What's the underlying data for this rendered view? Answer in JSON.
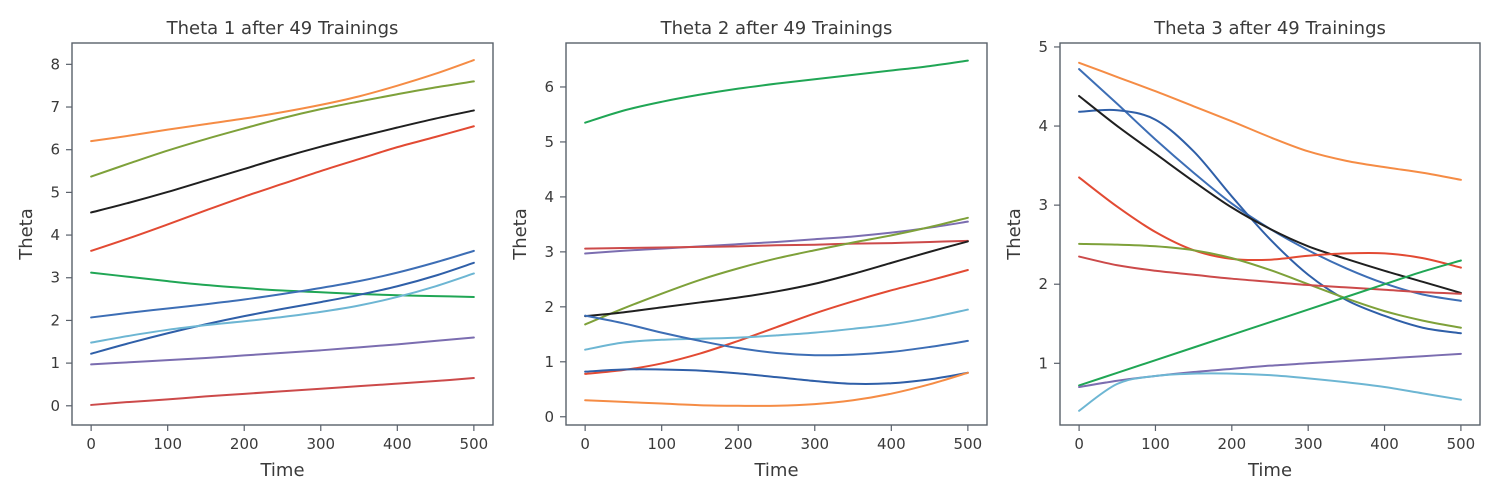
{
  "chart_data": [
    {
      "type": "line",
      "title": "Theta 1 after 49 Trainings",
      "xlabel": "Time",
      "ylabel": "Theta",
      "xlim": [
        -25,
        525
      ],
      "ylim": [
        -0.45,
        8.5
      ],
      "xticks": [
        0,
        100,
        200,
        300,
        400,
        500
      ],
      "yticks": [
        0,
        1,
        2,
        3,
        4,
        5,
        6,
        7,
        8
      ],
      "x": [
        0,
        50,
        100,
        150,
        200,
        250,
        300,
        350,
        400,
        450,
        500
      ],
      "series": [
        {
          "name": "orange",
          "color": "#f58c45",
          "values": [
            6.2,
            6.33,
            6.47,
            6.6,
            6.73,
            6.88,
            7.05,
            7.25,
            7.5,
            7.78,
            8.1
          ]
        },
        {
          "name": "olive",
          "color": "#7ea13a",
          "values": [
            5.37,
            5.68,
            5.98,
            6.25,
            6.5,
            6.74,
            6.95,
            7.13,
            7.3,
            7.46,
            7.6
          ]
        },
        {
          "name": "black",
          "color": "#1f1f1f",
          "values": [
            4.53,
            4.76,
            5.01,
            5.28,
            5.55,
            5.82,
            6.07,
            6.3,
            6.52,
            6.73,
            6.92
          ]
        },
        {
          "name": "red",
          "color": "#e24a33",
          "values": [
            3.63,
            3.93,
            4.25,
            4.58,
            4.9,
            5.2,
            5.5,
            5.78,
            6.06,
            6.3,
            6.55
          ]
        },
        {
          "name": "green",
          "color": "#20a655",
          "values": [
            3.12,
            3.02,
            2.92,
            2.83,
            2.76,
            2.7,
            2.66,
            2.62,
            2.59,
            2.57,
            2.55
          ]
        },
        {
          "name": "blue",
          "color": "#3d6eb5",
          "values": [
            2.07,
            2.18,
            2.28,
            2.38,
            2.49,
            2.62,
            2.76,
            2.92,
            3.12,
            3.36,
            3.63
          ]
        },
        {
          "name": "navy-blue",
          "color": "#2f5fa8",
          "values": [
            1.22,
            1.47,
            1.7,
            1.91,
            2.1,
            2.27,
            2.43,
            2.6,
            2.8,
            3.05,
            3.35
          ]
        },
        {
          "name": "light-blue",
          "color": "#6db6d3",
          "values": [
            1.48,
            1.64,
            1.78,
            1.89,
            1.98,
            2.08,
            2.2,
            2.35,
            2.55,
            2.8,
            3.1
          ]
        },
        {
          "name": "purple",
          "color": "#7b6db0",
          "values": [
            0.97,
            1.02,
            1.07,
            1.12,
            1.18,
            1.24,
            1.3,
            1.37,
            1.44,
            1.52,
            1.6
          ]
        },
        {
          "name": "dark-red",
          "color": "#cc4a4a",
          "values": [
            0.02,
            0.09,
            0.15,
            0.22,
            0.28,
            0.34,
            0.4,
            0.46,
            0.52,
            0.58,
            0.65
          ]
        }
      ]
    },
    {
      "type": "line",
      "title": "Theta 2 after 49 Trainings",
      "xlabel": "Time",
      "ylabel": "Theta",
      "xlim": [
        -25,
        525
      ],
      "ylim": [
        -0.15,
        6.8
      ],
      "xticks": [
        0,
        100,
        200,
        300,
        400,
        500
      ],
      "yticks": [
        0,
        1,
        2,
        3,
        4,
        5,
        6
      ],
      "x": [
        0,
        50,
        100,
        150,
        200,
        250,
        300,
        350,
        400,
        450,
        500
      ],
      "series": [
        {
          "name": "green",
          "color": "#20a655",
          "values": [
            5.35,
            5.57,
            5.73,
            5.86,
            5.97,
            6.06,
            6.14,
            6.22,
            6.3,
            6.38,
            6.48
          ]
        },
        {
          "name": "purple",
          "color": "#7b6db0",
          "values": [
            2.97,
            3.02,
            3.06,
            3.1,
            3.14,
            3.18,
            3.23,
            3.28,
            3.35,
            3.44,
            3.55
          ]
        },
        {
          "name": "red-flat",
          "color": "#cc4a4a",
          "values": [
            3.06,
            3.07,
            3.08,
            3.09,
            3.1,
            3.12,
            3.13,
            3.15,
            3.16,
            3.18,
            3.2
          ]
        },
        {
          "name": "olive",
          "color": "#7ea13a",
          "values": [
            1.68,
            1.97,
            2.24,
            2.49,
            2.7,
            2.88,
            3.03,
            3.17,
            3.3,
            3.45,
            3.62
          ]
        },
        {
          "name": "black",
          "color": "#1f1f1f",
          "values": [
            1.83,
            1.9,
            1.99,
            2.08,
            2.17,
            2.28,
            2.42,
            2.6,
            2.8,
            3.0,
            3.19
          ]
        },
        {
          "name": "red",
          "color": "#e24a33",
          "values": [
            0.78,
            0.85,
            0.97,
            1.15,
            1.38,
            1.63,
            1.88,
            2.1,
            2.3,
            2.48,
            2.67
          ]
        },
        {
          "name": "light-blue",
          "color": "#6db6d3",
          "values": [
            1.22,
            1.35,
            1.4,
            1.42,
            1.44,
            1.48,
            1.53,
            1.6,
            1.68,
            1.8,
            1.95
          ]
        },
        {
          "name": "blue",
          "color": "#3d6eb5",
          "values": [
            1.84,
            1.7,
            1.53,
            1.38,
            1.25,
            1.16,
            1.12,
            1.13,
            1.18,
            1.27,
            1.38
          ]
        },
        {
          "name": "navy-blue",
          "color": "#2f5fa8",
          "values": [
            0.82,
            0.86,
            0.86,
            0.84,
            0.79,
            0.72,
            0.65,
            0.6,
            0.61,
            0.68,
            0.8
          ]
        },
        {
          "name": "orange",
          "color": "#f58c45",
          "values": [
            0.3,
            0.27,
            0.24,
            0.21,
            0.2,
            0.2,
            0.23,
            0.3,
            0.42,
            0.59,
            0.8
          ]
        }
      ]
    },
    {
      "type": "line",
      "title": "Theta 3 after 49 Trainings",
      "xlabel": "Time",
      "ylabel": "Theta",
      "xlim": [
        -25,
        525
      ],
      "ylim": [
        0.22,
        5.05
      ],
      "xticks": [
        0,
        100,
        200,
        300,
        400,
        500
      ],
      "yticks": [
        1,
        2,
        3,
        4,
        5
      ],
      "x": [
        0,
        50,
        100,
        150,
        200,
        250,
        300,
        350,
        400,
        450,
        500
      ],
      "series": [
        {
          "name": "orange",
          "color": "#f58c45",
          "values": [
            4.8,
            4.62,
            4.44,
            4.25,
            4.06,
            3.86,
            3.68,
            3.56,
            3.48,
            3.41,
            3.32
          ]
        },
        {
          "name": "blue",
          "color": "#3d6eb5",
          "values": [
            4.72,
            4.28,
            3.83,
            3.41,
            3.02,
            2.7,
            2.43,
            2.2,
            2.01,
            1.87,
            1.79
          ]
        },
        {
          "name": "navy-blue",
          "color": "#2f5fa8",
          "values": [
            4.18,
            4.2,
            4.08,
            3.68,
            3.11,
            2.57,
            2.12,
            1.8,
            1.6,
            1.45,
            1.38
          ]
        },
        {
          "name": "black",
          "color": "#1f1f1f",
          "values": [
            4.38,
            4.0,
            3.65,
            3.3,
            2.97,
            2.7,
            2.48,
            2.32,
            2.17,
            2.03,
            1.89
          ]
        },
        {
          "name": "red",
          "color": "#e24a33",
          "values": [
            3.35,
            2.98,
            2.66,
            2.43,
            2.32,
            2.31,
            2.36,
            2.39,
            2.39,
            2.33,
            2.21
          ]
        },
        {
          "name": "olive",
          "color": "#7ea13a",
          "values": [
            2.51,
            2.5,
            2.48,
            2.43,
            2.33,
            2.18,
            2.0,
            1.82,
            1.66,
            1.54,
            1.45
          ]
        },
        {
          "name": "dark-red",
          "color": "#cc4a4a",
          "values": [
            2.35,
            2.24,
            2.17,
            2.12,
            2.07,
            2.03,
            1.99,
            1.96,
            1.93,
            1.9,
            1.88
          ]
        },
        {
          "name": "green",
          "color": "#20a655",
          "values": [
            0.72,
            0.88,
            1.04,
            1.2,
            1.36,
            1.52,
            1.68,
            1.84,
            2.0,
            2.16,
            2.3
          ]
        },
        {
          "name": "purple",
          "color": "#7b6db0",
          "values": [
            0.7,
            0.78,
            0.84,
            0.89,
            0.93,
            0.97,
            1.0,
            1.03,
            1.06,
            1.09,
            1.12
          ]
        },
        {
          "name": "light-blue",
          "color": "#6db6d3",
          "values": [
            0.4,
            0.74,
            0.84,
            0.87,
            0.87,
            0.85,
            0.81,
            0.76,
            0.7,
            0.62,
            0.54
          ]
        }
      ]
    }
  ]
}
